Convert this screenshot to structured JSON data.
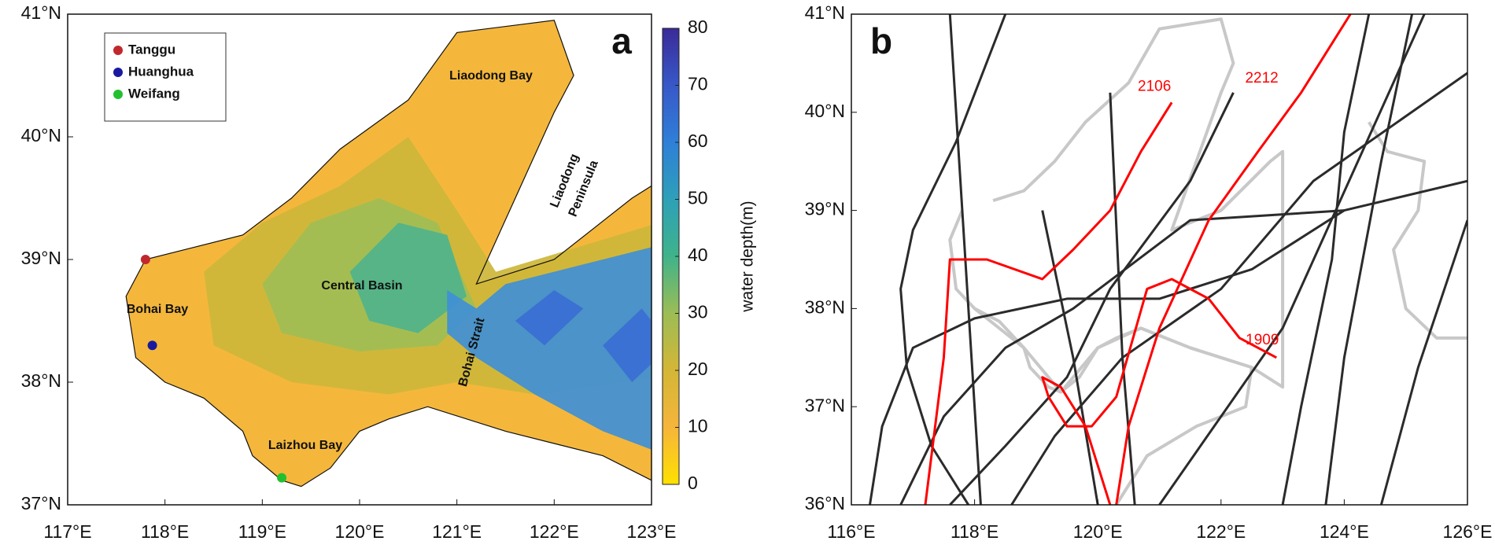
{
  "chart_data": [
    {
      "type": "map",
      "panel_label": "a",
      "xlim": [
        117,
        123
      ],
      "ylim": [
        37,
        41
      ],
      "xticks": [
        {
          "value": 117,
          "label": "117°E"
        },
        {
          "value": 118,
          "label": "118°E"
        },
        {
          "value": 119,
          "label": "119°E"
        },
        {
          "value": 120,
          "label": "120°E"
        },
        {
          "value": 121,
          "label": "121°E"
        },
        {
          "value": 122,
          "label": "122°E"
        },
        {
          "value": 123,
          "label": "123°E"
        }
      ],
      "yticks": [
        {
          "value": 37,
          "label": "37°N"
        },
        {
          "value": 38,
          "label": "38°N"
        },
        {
          "value": 39,
          "label": "39°N"
        },
        {
          "value": 40,
          "label": "40°N"
        },
        {
          "value": 41,
          "label": "41°N"
        }
      ],
      "series": [
        {
          "name": "Tanggu",
          "color": "#c0282d",
          "lon": [
            117.8
          ],
          "lat": [
            39.0
          ]
        },
        {
          "name": "Huanghua",
          "color": "#1a1aa0",
          "lon": [
            117.87
          ],
          "lat": [
            38.3
          ]
        },
        {
          "name": "Weifang",
          "color": "#22c030",
          "lon": [
            119.2
          ],
          "lat": [
            37.22
          ]
        }
      ],
      "annotations": [
        "Liaodong Bay",
        "Liaodong",
        "Peninsula",
        "Central Basin",
        "Bohai Bay",
        "Bohai Strait",
        "Laizhou Bay"
      ],
      "colorbar": {
        "label": "water depth(m)",
        "lim": [
          0,
          80
        ],
        "ticks": [
          0,
          10,
          20,
          30,
          40,
          50,
          60,
          70,
          80
        ],
        "colors": [
          "#ffe000",
          "#f5b53a",
          "#d4b636",
          "#9cbd55",
          "#3fb38a",
          "#2ea0b8",
          "#2f7fd8",
          "#3858c8",
          "#3a2a98"
        ]
      }
    },
    {
      "type": "line",
      "panel_label": "b",
      "xlim": [
        116,
        126
      ],
      "ylim": [
        36,
        41
      ],
      "xticks": [
        {
          "value": 116,
          "label": "116°E"
        },
        {
          "value": 118,
          "label": "118°E"
        },
        {
          "value": 120,
          "label": "120°E"
        },
        {
          "value": 122,
          "label": "122°E"
        },
        {
          "value": 124,
          "label": "124°E"
        },
        {
          "value": 126,
          "label": "126°E"
        }
      ],
      "yticks": [
        {
          "value": 36,
          "label": "36°N"
        },
        {
          "value": 37,
          "label": "37°N"
        },
        {
          "value": 38,
          "label": "38°N"
        },
        {
          "value": 39,
          "label": "39°N"
        },
        {
          "value": 40,
          "label": "40°N"
        },
        {
          "value": 41,
          "label": "41°N"
        }
      ],
      "series": [
        {
          "color": "#2b2b2b",
          "lon": [
            117.6,
            117.8,
            118.1
          ],
          "lat": [
            41,
            39,
            36
          ]
        },
        {
          "color": "#2b2b2b",
          "lon": [
            118.5,
            117.7,
            117.0,
            116.8,
            116.9,
            117.3,
            117.9
          ],
          "lat": [
            41,
            39.7,
            38.8,
            38.2,
            37.4,
            36.6,
            36
          ]
        },
        {
          "color": "#2b2b2b",
          "lon": [
            116.3,
            116.5,
            117.0,
            118.0,
            119.5,
            121.0,
            122.5,
            124.0,
            126
          ],
          "lat": [
            36,
            36.8,
            37.6,
            37.9,
            38.1,
            38.1,
            38.4,
            39.0,
            39.3
          ]
        },
        {
          "color": "#2b2b2b",
          "lon": [
            116.8,
            117.5,
            118.5,
            119.6,
            121.5,
            124.0
          ],
          "lat": [
            36,
            36.9,
            37.6,
            38.0,
            38.9,
            39.0
          ]
        },
        {
          "color": "#2b2b2b",
          "lon": [
            117.6,
            118.5,
            119.5,
            120.2,
            121.5,
            122.2
          ],
          "lat": [
            36,
            36.6,
            37.3,
            38.2,
            39.3,
            40.2
          ]
        },
        {
          "color": "#2b2b2b",
          "lon": [
            118.6,
            119.3,
            120.4,
            122.0,
            123.5,
            126
          ],
          "lat": [
            36,
            36.7,
            37.5,
            38.2,
            39.3,
            40.4
          ]
        },
        {
          "color": "#2b2b2b",
          "lon": [
            119.1,
            119.6,
            120.0
          ],
          "lat": [
            39.0,
            37.5,
            36
          ]
        },
        {
          "color": "#2b2b2b",
          "lon": [
            120.2,
            120.4,
            120.6
          ],
          "lat": [
            40.2,
            37.5,
            36
          ]
        },
        {
          "color": "#2b2b2b",
          "lon": [
            123.0,
            123.3,
            123.8,
            124.0,
            124.4
          ],
          "lat": [
            36,
            37.0,
            38.5,
            39.8,
            41
          ]
        },
        {
          "color": "#2b2b2b",
          "lon": [
            123.7,
            124.0,
            124.6,
            125.1
          ],
          "lat": [
            36,
            37.5,
            39.5,
            41
          ]
        },
        {
          "color": "#2b2b2b",
          "lon": [
            121.0,
            123.0,
            125.3
          ],
          "lat": [
            36,
            37.8,
            41
          ]
        },
        {
          "color": "#2b2b2b",
          "lon": [
            124.6,
            125.2,
            126
          ],
          "lat": [
            36,
            37.4,
            38.9
          ]
        },
        {
          "name": "2106",
          "color": "#ff0000",
          "lon": [
            117.2,
            117.5,
            117.6,
            118.2,
            119.1,
            119.6,
            120.2,
            120.7,
            121.2
          ],
          "lat": [
            36,
            37.5,
            38.5,
            38.5,
            38.3,
            38.6,
            39.0,
            39.6,
            40.1
          ]
        },
        {
          "name": "2212",
          "color": "#ff0000",
          "lon": [
            120.3,
            120.5,
            121.0,
            121.8,
            122.6,
            123.3,
            124.0,
            124.1
          ],
          "lat": [
            36,
            36.8,
            37.8,
            38.9,
            39.6,
            40.2,
            40.9,
            41
          ]
        },
        {
          "name": "1909",
          "color": "#ff0000",
          "lon": [
            122.9,
            122.3,
            121.8,
            121.2,
            120.8,
            120.3,
            119.9,
            119.5,
            119.2,
            119.1,
            119.4,
            119.8,
            120.1,
            120.2
          ],
          "lat": [
            37.5,
            37.7,
            38.1,
            38.3,
            38.2,
            37.1,
            36.8,
            36.8,
            37.1,
            37.3,
            37.2,
            36.8,
            36.2,
            36
          ]
        }
      ]
    }
  ]
}
